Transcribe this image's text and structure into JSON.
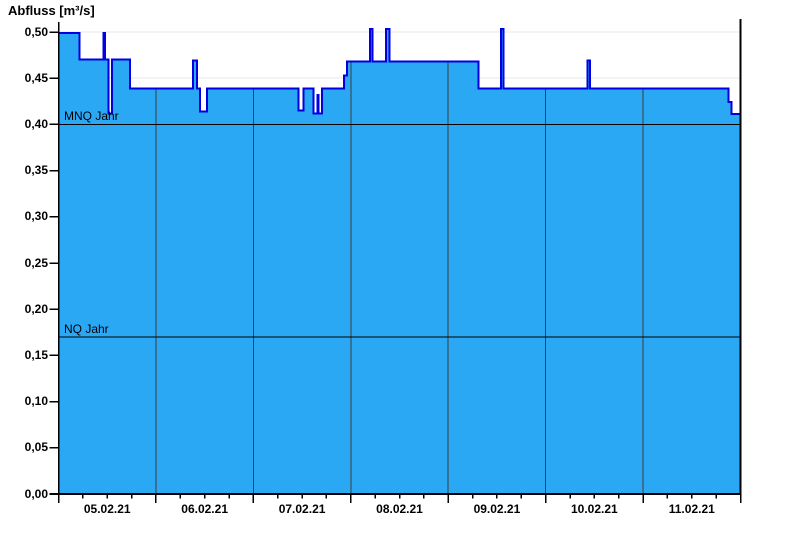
{
  "title": "Abfluss [m³/s]",
  "chart_data": {
    "type": "area",
    "title": "Abfluss [m³/s]",
    "ylabel": "Abfluss [m³/s]",
    "xlabel": "",
    "ylim": [
      0,
      0.5
    ],
    "y_tick_step": 0.05,
    "y_tick_labels": [
      "0,00",
      "0,05",
      "0,10",
      "0,15",
      "0,20",
      "0,25",
      "0,30",
      "0,35",
      "0,40",
      "0,45",
      "0,50"
    ],
    "x_day_labels": [
      "05.02.21",
      "06.02.21",
      "07.02.21",
      "08.02.21",
      "09.02.21",
      "10.02.21",
      "11.02.21"
    ],
    "x_days_total": 7,
    "x_minor_tick_hours": 6,
    "grid": "horizontal light, vertical day lines inside area only",
    "legend_position": "none",
    "unit": "m³/s",
    "series_name": "Abfluss",
    "series_steps": [
      [
        0.0,
        0.499
      ],
      [
        0.218,
        0.47
      ],
      [
        0.462,
        0.499
      ],
      [
        0.478,
        0.47
      ],
      [
        0.512,
        0.412
      ],
      [
        0.548,
        0.47
      ],
      [
        0.734,
        0.439
      ],
      [
        1.378,
        0.469
      ],
      [
        1.42,
        0.439
      ],
      [
        1.452,
        0.414
      ],
      [
        1.525,
        0.439
      ],
      [
        2.462,
        0.415
      ],
      [
        2.513,
        0.439
      ],
      [
        2.615,
        0.412
      ],
      [
        2.656,
        0.432
      ],
      [
        2.67,
        0.412
      ],
      [
        2.704,
        0.439
      ],
      [
        2.93,
        0.453
      ],
      [
        2.96,
        0.468
      ],
      [
        3.197,
        0.503
      ],
      [
        3.223,
        0.468
      ],
      [
        3.361,
        0.503
      ],
      [
        3.397,
        0.468
      ],
      [
        4.309,
        0.439
      ],
      [
        4.54,
        0.503
      ],
      [
        4.565,
        0.439
      ],
      [
        5.429,
        0.469
      ],
      [
        5.455,
        0.439
      ],
      [
        6.875,
        0.424
      ],
      [
        6.91,
        0.411
      ]
    ],
    "ref_lines": [
      {
        "label": "MNQ Jahr",
        "value": 0.4
      },
      {
        "label": "NQ Jahr",
        "value": 0.17
      }
    ],
    "colors": {
      "area_fill": "#2BA8F4",
      "area_stroke": "#0000E2",
      "ref_line": "#000000",
      "grid_horizontal": "#E7E7E7",
      "grid_vertical_on_area": "#3D3D3D",
      "axis": "#000000",
      "background": "#FFFFFF"
    }
  }
}
